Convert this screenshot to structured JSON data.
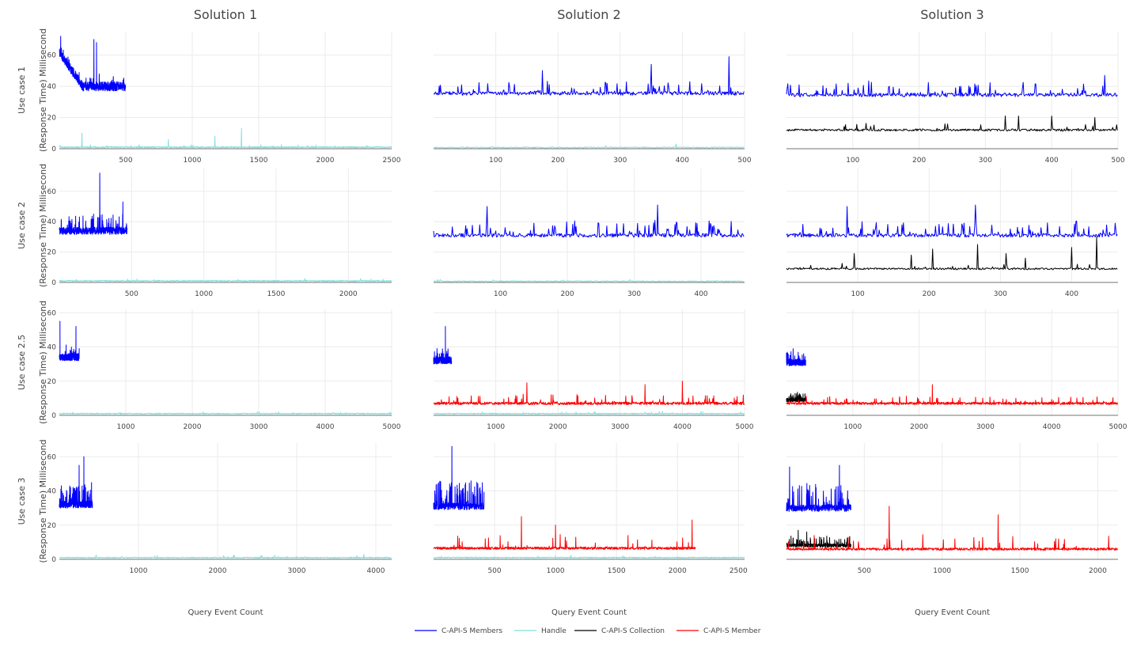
{
  "chart_data": {
    "type": "line",
    "column_titles": [
      "Solution 1",
      "Solution 2",
      "Solution 3"
    ],
    "row_labels": [
      "Use case 1",
      "Use case 2",
      "Use case 2.5",
      "Use case 3"
    ],
    "ylabel": "(Response Time) Millisecond",
    "xlabel": "Query Event Count",
    "legend": [
      {
        "name": "C-API-S Members",
        "color": "#0000ff"
      },
      {
        "name": "Handle",
        "color": "#7fe0de"
      },
      {
        "name": "C-API-S Collection",
        "color": "#000000"
      },
      {
        "name": "C-API-S Member",
        "color": "#ff0000"
      }
    ],
    "legend_position": "bottom-center",
    "grid": true,
    "panels": [
      {
        "row": 0,
        "col": 0,
        "xlim": [
          0,
          2500
        ],
        "ylim": [
          0,
          75
        ],
        "xticks": [
          500,
          1000,
          1500,
          2000,
          2500
        ],
        "yticks": [
          0,
          20,
          40,
          60
        ],
        "series": [
          {
            "name": "C-API-S Members",
            "n": 500,
            "base": 40,
            "start": 62,
            "amp": 3,
            "spike_rate": 0.06,
            "spike_amp": 8,
            "peaks": [
              [
                10,
                72
              ],
              [
                260,
                70
              ],
              [
                280,
                68
              ]
            ],
            "seed": 11
          },
          {
            "name": "Handle",
            "n": 2500,
            "base": 1,
            "amp": 0.4,
            "spike_rate": 0.01,
            "spike_amp": 2,
            "peaks": [
              [
                170,
                10
              ],
              [
                820,
                6
              ],
              [
                1170,
                8
              ],
              [
                1370,
                13
              ]
            ],
            "seed": 12
          }
        ]
      },
      {
        "row": 0,
        "col": 1,
        "xlim": [
          0,
          500
        ],
        "ylim": [
          0,
          75
        ],
        "xticks": [
          100,
          200,
          300,
          400,
          500
        ],
        "yticks": [],
        "series": [
          {
            "name": "C-API-S Members",
            "n": 500,
            "base": 35.5,
            "amp": 1.2,
            "spike_rate": 0.12,
            "spike_amp": 8,
            "peaks": [
              [
                175,
                50
              ],
              [
                350,
                54
              ],
              [
                475,
                59
              ]
            ],
            "seed": 21
          },
          {
            "name": "Handle",
            "n": 500,
            "base": 0.8,
            "amp": 0.4,
            "spike_rate": 0.02,
            "spike_amp": 2,
            "peaks": [
              [
                390,
                3
              ]
            ],
            "seed": 22
          }
        ]
      },
      {
        "row": 0,
        "col": 2,
        "xlim": [
          0,
          500
        ],
        "ylim": [
          0,
          75
        ],
        "xticks": [
          100,
          200,
          300,
          400,
          500
        ],
        "yticks": [],
        "series": [
          {
            "name": "C-API-S Members",
            "n": 500,
            "base": 34.5,
            "amp": 1.2,
            "spike_rate": 0.12,
            "spike_amp": 8,
            "peaks": [
              [
                480,
                47
              ]
            ],
            "seed": 31
          },
          {
            "name": "C-API-S Collection",
            "n": 500,
            "base": 12,
            "amp": 0.7,
            "spike_rate": 0.05,
            "spike_amp": 4,
            "peaks": [
              [
                330,
                21
              ],
              [
                350,
                21
              ],
              [
                400,
                21
              ],
              [
                465,
                20
              ]
            ],
            "seed": 32
          }
        ]
      },
      {
        "row": 1,
        "col": 0,
        "xlim": [
          0,
          2300
        ],
        "ylim": [
          0,
          75
        ],
        "xticks": [
          500,
          1000,
          1500,
          2000
        ],
        "yticks": [
          0,
          20,
          40,
          60
        ],
        "series": [
          {
            "name": "C-API-S Members",
            "n": 470,
            "base": 34,
            "amp": 2.5,
            "spike_rate": 0.15,
            "spike_amp": 10,
            "peaks": [
              [
                280,
                72
              ],
              [
                440,
                53
              ]
            ],
            "seed": 41
          },
          {
            "name": "Handle",
            "n": 2300,
            "base": 1,
            "amp": 0.4,
            "spike_rate": 0.01,
            "spike_amp": 1.5,
            "peaks": [],
            "seed": 42
          }
        ]
      },
      {
        "row": 1,
        "col": 1,
        "xlim": [
          0,
          465
        ],
        "ylim": [
          0,
          75
        ],
        "xticks": [
          100,
          200,
          300,
          400
        ],
        "yticks": [],
        "series": [
          {
            "name": "C-API-S Members",
            "n": 465,
            "base": 31,
            "amp": 1.2,
            "spike_rate": 0.12,
            "spike_amp": 9,
            "peaks": [
              [
                80,
                50
              ],
              [
                335,
                51
              ]
            ],
            "seed": 51
          },
          {
            "name": "Handle",
            "n": 465,
            "base": 0.8,
            "amp": 0.4,
            "spike_rate": 0.02,
            "spike_amp": 1.5,
            "peaks": [],
            "seed": 52
          }
        ]
      },
      {
        "row": 1,
        "col": 2,
        "xlim": [
          0,
          465
        ],
        "ylim": [
          0,
          75
        ],
        "xticks": [
          100,
          200,
          300,
          400
        ],
        "yticks": [],
        "series": [
          {
            "name": "C-API-S Members",
            "n": 465,
            "base": 31,
            "amp": 1.2,
            "spike_rate": 0.12,
            "spike_amp": 9,
            "peaks": [
              [
                85,
                50
              ],
              [
                265,
                51
              ]
            ],
            "seed": 61
          },
          {
            "name": "C-API-S Collection",
            "n": 465,
            "base": 9,
            "amp": 0.6,
            "spike_rate": 0.04,
            "spike_amp": 4,
            "peaks": [
              [
                95,
                19
              ],
              [
                175,
                18
              ],
              [
                205,
                22
              ],
              [
                268,
                25
              ],
              [
                308,
                19
              ],
              [
                335,
                16
              ],
              [
                400,
                23
              ],
              [
                435,
                30
              ]
            ],
            "seed": 62
          }
        ]
      },
      {
        "row": 2,
        "col": 0,
        "xlim": [
          0,
          5000
        ],
        "ylim": [
          0,
          62
        ],
        "xticks": [
          1000,
          2000,
          3000,
          4000,
          5000
        ],
        "yticks": [
          0,
          20,
          40,
          60
        ],
        "series": [
          {
            "name": "C-API-S Members",
            "n": 300,
            "base": 34,
            "amp": 2,
            "spike_rate": 0.12,
            "spike_amp": 6,
            "peaks": [
              [
                10,
                55
              ],
              [
                250,
                52
              ]
            ],
            "seed": 71
          },
          {
            "name": "Handle",
            "n": 5000,
            "base": 1,
            "amp": 0.3,
            "spike_rate": 0.005,
            "spike_amp": 1.2,
            "peaks": [],
            "seed": 72
          }
        ]
      },
      {
        "row": 2,
        "col": 1,
        "xlim": [
          0,
          5000
        ],
        "ylim": [
          0,
          62
        ],
        "xticks": [
          1000,
          2000,
          3000,
          4000,
          5000
        ],
        "yticks": [],
        "series": [
          {
            "name": "C-API-S Members",
            "n": 290,
            "base": 32,
            "amp": 2,
            "spike_rate": 0.12,
            "spike_amp": 6,
            "peaks": [
              [
                190,
                52
              ]
            ],
            "seed": 81
          },
          {
            "name": "Handle",
            "n": 5000,
            "base": 1,
            "amp": 0.3,
            "spike_rate": 0.005,
            "spike_amp": 1.2,
            "peaks": [],
            "seed": 82
          },
          {
            "name": "C-API-S Member",
            "n": 5000,
            "base": 7,
            "amp": 0.8,
            "spike_rate": 0.012,
            "spike_amp": 5,
            "peaks": [
              [
                1500,
                19
              ],
              [
                3400,
                18
              ],
              [
                4000,
                20
              ]
            ],
            "seed": 83
          }
        ]
      },
      {
        "row": 2,
        "col": 2,
        "xlim": [
          0,
          5000
        ],
        "ylim": [
          0,
          62
        ],
        "xticks": [
          1000,
          2000,
          3000,
          4000,
          5000
        ],
        "yticks": [],
        "series": [
          {
            "name": "C-API-S Members",
            "n": 290,
            "base": 31,
            "amp": 2,
            "spike_rate": 0.12,
            "spike_amp": 5,
            "peaks": [
              [
                100,
                39
              ]
            ],
            "seed": 91
          },
          {
            "name": "C-API-S Collection",
            "n": 290,
            "base": 9,
            "amp": 1,
            "spike_rate": 0.15,
            "spike_amp": 4,
            "peaks": [],
            "seed": 92
          },
          {
            "name": "C-API-S Member",
            "n": 5000,
            "base": 7,
            "amp": 0.7,
            "spike_rate": 0.012,
            "spike_amp": 4,
            "peaks": [
              [
                2200,
                18
              ]
            ],
            "seed": 93
          }
        ]
      },
      {
        "row": 3,
        "col": 0,
        "xlim": [
          0,
          4200
        ],
        "ylim": [
          0,
          68
        ],
        "xticks": [
          1000,
          2000,
          3000,
          4000
        ],
        "yticks": [
          0,
          20,
          40,
          60
        ],
        "series": [
          {
            "name": "C-API-S Members",
            "n": 420,
            "base": 32,
            "amp": 2,
            "spike_rate": 0.15,
            "spike_amp": 12,
            "peaks": [
              [
                310,
                60
              ],
              [
                250,
                55
              ]
            ],
            "seed": 101
          },
          {
            "name": "Handle",
            "n": 4200,
            "base": 1,
            "amp": 0.3,
            "spike_rate": 0.005,
            "spike_amp": 1.5,
            "peaks": [
              [
                3850,
                3
              ]
            ],
            "seed": 102
          }
        ]
      },
      {
        "row": 3,
        "col": 1,
        "xlim": [
          0,
          2550
        ],
        "ylim": [
          0,
          68
        ],
        "xticks": [
          500,
          1000,
          1500,
          2000,
          2500
        ],
        "yticks": [],
        "series": [
          {
            "name": "C-API-S Members",
            "n": 415,
            "base": 31,
            "amp": 2,
            "spike_rate": 0.15,
            "spike_amp": 14,
            "peaks": [
              [
                150,
                66
              ]
            ],
            "seed": 111
          },
          {
            "name": "Handle",
            "n": 2550,
            "base": 1,
            "amp": 0.3,
            "spike_rate": 0.005,
            "spike_amp": 1.2,
            "peaks": [],
            "seed": 112
          },
          {
            "name": "C-API-S Member",
            "n": 2150,
            "base": 6.5,
            "amp": 0.7,
            "spike_rate": 0.02,
            "spike_amp": 8,
            "peaks": [
              [
                720,
                25
              ],
              [
                1000,
                20
              ],
              [
                2120,
                23
              ]
            ],
            "seed": 113
          }
        ]
      },
      {
        "row": 3,
        "col": 2,
        "xlim": [
          0,
          2130
        ],
        "ylim": [
          0,
          68
        ],
        "xticks": [
          500,
          1000,
          1500,
          2000
        ],
        "yticks": [],
        "series": [
          {
            "name": "C-API-S Members",
            "n": 415,
            "base": 30,
            "amp": 2,
            "spike_rate": 0.15,
            "spike_amp": 14,
            "peaks": [
              [
                20,
                54
              ],
              [
                340,
                55
              ]
            ],
            "seed": 121
          },
          {
            "name": "C-API-S Collection",
            "n": 415,
            "base": 8,
            "amp": 1,
            "spike_rate": 0.15,
            "spike_amp": 5,
            "peaks": [
              [
                75,
                17
              ],
              [
                130,
                16
              ]
            ],
            "seed": 122
          },
          {
            "name": "C-API-S Member",
            "n": 2130,
            "base": 6,
            "amp": 0.7,
            "spike_rate": 0.02,
            "spike_amp": 8,
            "peaks": [
              [
                660,
                31
              ],
              [
                1360,
                26
              ]
            ],
            "seed": 123
          }
        ]
      }
    ]
  }
}
